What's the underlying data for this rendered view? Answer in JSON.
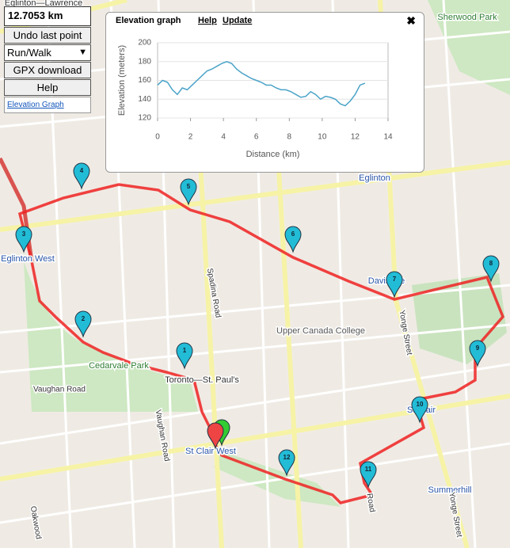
{
  "panel": {
    "distance": "12.7053 km",
    "undo": "Undo last point",
    "mode": "Run/Walk",
    "gpx": "GPX download",
    "help": "Help",
    "elevation_link": "Elevation Graph"
  },
  "popup": {
    "title": "Elevation graph",
    "help": "Help",
    "update": "Update",
    "close": "✖"
  },
  "chart_data": {
    "type": "line",
    "xlabel": "Distance (km)",
    "ylabel": "Elevation (meters)",
    "x": [
      0,
      0.3,
      0.6,
      0.9,
      1.2,
      1.5,
      1.8,
      2.1,
      2.4,
      2.7,
      3.0,
      3.3,
      3.6,
      3.9,
      4.2,
      4.5,
      4.8,
      5.1,
      5.4,
      5.7,
      6.0,
      6.3,
      6.6,
      6.9,
      7.2,
      7.5,
      7.8,
      8.1,
      8.4,
      8.7,
      9.0,
      9.3,
      9.6,
      9.9,
      10.2,
      10.5,
      10.8,
      11.1,
      11.4,
      11.7,
      12.0,
      12.3,
      12.6
    ],
    "values": [
      155,
      160,
      158,
      150,
      145,
      152,
      150,
      155,
      160,
      165,
      170,
      172,
      175,
      178,
      180,
      178,
      172,
      168,
      165,
      162,
      160,
      158,
      155,
      155,
      152,
      150,
      150,
      148,
      145,
      142,
      143,
      148,
      145,
      140,
      143,
      142,
      140,
      135,
      133,
      138,
      145,
      155,
      157
    ],
    "color": "#4aa3c8",
    "xlim": [
      0,
      14
    ],
    "ylim": [
      120,
      200
    ],
    "xticks": [
      0,
      2,
      4,
      6,
      8,
      10,
      12,
      14
    ],
    "yticks": [
      120,
      140,
      160,
      180,
      200
    ],
    "grid": true
  },
  "map": {
    "labels": [
      "Eglinton—Lawrence",
      "Sherwood Park",
      "Eglinton",
      "Eglinton West",
      "Davisville",
      "Upper Canada College",
      "Cedarvale Park",
      "Vaughan Road",
      "Toronto—St. Paul's",
      "St Clair West",
      "St Clair",
      "Summerhill",
      "Spadina Road",
      "Yonge Street",
      "Vaughan Road",
      "Oakwood",
      "Yonge Street",
      "Road"
    ],
    "markers": [
      "1",
      "2",
      "3",
      "4",
      "5",
      "6",
      "7",
      "8",
      "9",
      "10",
      "11",
      "12"
    ]
  }
}
